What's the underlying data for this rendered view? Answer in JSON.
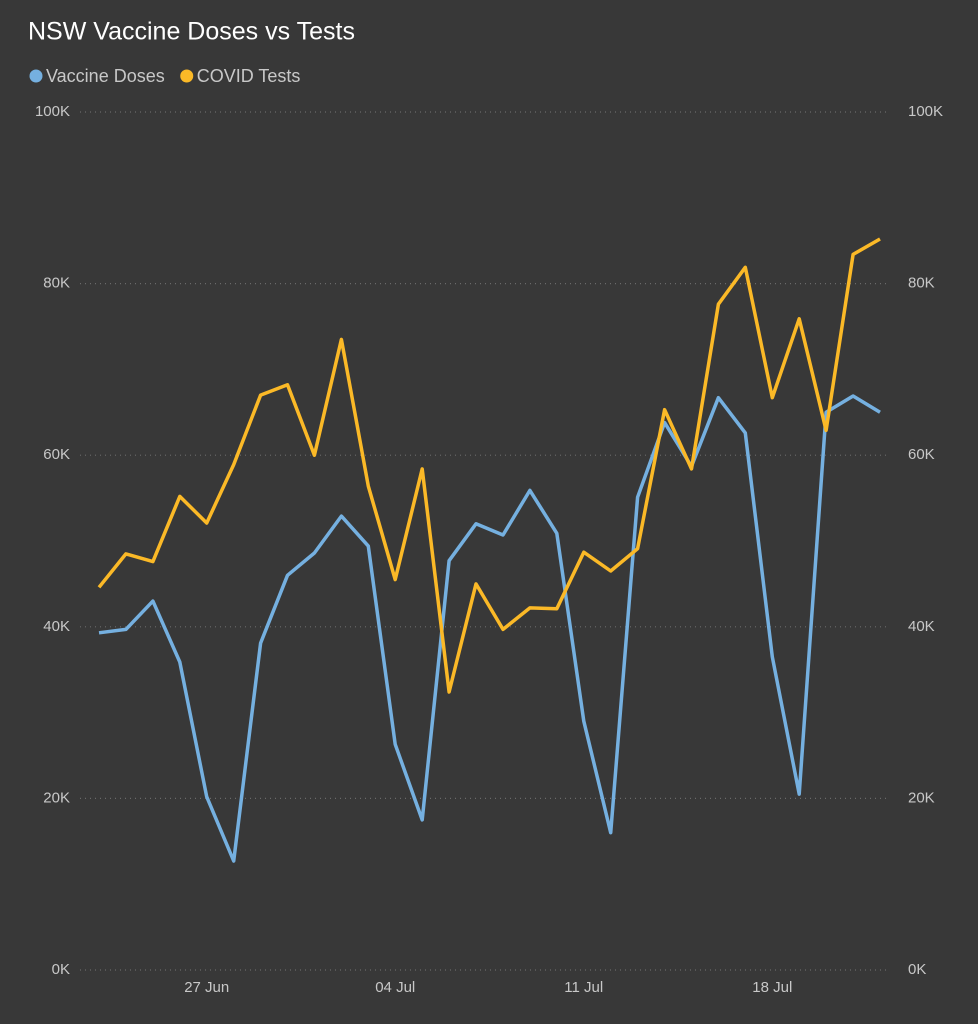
{
  "chart_data": {
    "type": "line",
    "title": "NSW Vaccine Doses vs Tests",
    "categories": [
      null,
      null,
      null,
      null,
      "27 Jun",
      null,
      null,
      null,
      null,
      null,
      null,
      "04 Jul",
      null,
      null,
      null,
      null,
      null,
      null,
      "11 Jul",
      null,
      null,
      null,
      null,
      null,
      null,
      "18 Jul",
      null,
      null,
      null,
      null
    ],
    "series": [
      {
        "name": "Vaccine Doses",
        "color": "#75b0e0",
        "axis": "y",
        "values": [
          39300,
          39700,
          43000,
          35900,
          20200,
          12700,
          38100,
          46000,
          48600,
          52900,
          49400,
          26300,
          17500,
          47700,
          52000,
          50700,
          55900,
          50900,
          29000,
          16000,
          55100,
          63800,
          58700,
          66700,
          62600,
          36500,
          20500,
          65000,
          66900,
          65000
        ]
      },
      {
        "name": "COVID Tests",
        "color": "#fbb927",
        "axis": "y2",
        "values": [
          44600,
          48500,
          47600,
          55200,
          52100,
          58900,
          67000,
          68200,
          60000,
          73500,
          56400,
          45500,
          58400,
          32400,
          45000,
          39700,
          42200,
          42100,
          48700,
          46500,
          49100,
          65300,
          58400,
          77600,
          81900,
          66700,
          75900,
          62900,
          83400,
          85200
        ]
      }
    ],
    "ylim": [
      0,
      100000
    ],
    "yticks": [
      {
        "value": 0,
        "label": "0K"
      },
      {
        "value": 20000,
        "label": "20K"
      },
      {
        "value": 40000,
        "label": "40K"
      },
      {
        "value": 60000,
        "label": "60K"
      },
      {
        "value": 80000,
        "label": "80K"
      },
      {
        "value": 100000,
        "label": "100K"
      }
    ],
    "y2lim": [
      0,
      100000
    ],
    "y2ticks": [
      {
        "value": 0,
        "label": "0K"
      },
      {
        "value": 20000,
        "label": "20K"
      },
      {
        "value": 40000,
        "label": "40K"
      },
      {
        "value": 60000,
        "label": "60K"
      },
      {
        "value": 80000,
        "label": "80K"
      },
      {
        "value": 100000,
        "label": "100K"
      }
    ],
    "grid": true,
    "legend": "top-left"
  }
}
